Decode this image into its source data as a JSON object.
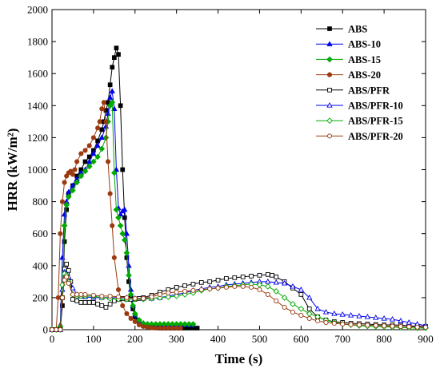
{
  "chart_data": {
    "type": "line",
    "xlabel": "Time (s)",
    "ylabel": "HRR (kW/m²)",
    "xlim": [
      0,
      900
    ],
    "ylim": [
      0,
      2000
    ],
    "x_ticks": [
      "0",
      "100",
      "200",
      "300",
      "400",
      "500",
      "600",
      "700",
      "800",
      "900"
    ],
    "y_ticks": [
      "0",
      "200",
      "400",
      "600",
      "800",
      "1000",
      "1200",
      "1400",
      "1600",
      "1800",
      "2000"
    ],
    "grid": false,
    "legend_position": "top-right",
    "series": [
      {
        "name": "ABS",
        "color": "#000000",
        "marker": "square",
        "filled": true,
        "x": [
          0,
          10,
          20,
          25,
          30,
          35,
          40,
          50,
          60,
          70,
          80,
          90,
          100,
          110,
          120,
          125,
          130,
          135,
          140,
          145,
          150,
          155,
          160,
          165,
          170,
          175,
          180,
          185,
          190,
          195,
          200,
          210,
          220,
          230,
          240,
          250,
          260,
          270,
          280,
          290,
          300,
          310,
          320,
          330,
          340,
          350
        ],
        "y": [
          0,
          0,
          0,
          150,
          550,
          750,
          850,
          900,
          960,
          1000,
          1050,
          1080,
          1120,
          1180,
          1250,
          1300,
          1370,
          1420,
          1530,
          1640,
          1700,
          1760,
          1720,
          1400,
          1000,
          700,
          450,
          300,
          200,
          130,
          80,
          40,
          25,
          20,
          15,
          12,
          10,
          10,
          10,
          10,
          10,
          10,
          10,
          10,
          10,
          10
        ]
      },
      {
        "name": "ABS-10",
        "color": "#0000ee",
        "marker": "triangle",
        "filled": true,
        "x": [
          0,
          10,
          20,
          25,
          30,
          35,
          40,
          50,
          60,
          70,
          80,
          90,
          100,
          110,
          120,
          130,
          135,
          140,
          145,
          150,
          155,
          160,
          165,
          170,
          175,
          180,
          185,
          190,
          195,
          200,
          210,
          220,
          230,
          240,
          250,
          260,
          270,
          280,
          290,
          300,
          310,
          320,
          330,
          340
        ],
        "y": [
          0,
          0,
          30,
          450,
          720,
          800,
          860,
          900,
          940,
          980,
          1000,
          1050,
          1100,
          1150,
          1200,
          1270,
          1350,
          1450,
          1490,
          1380,
          1000,
          760,
          720,
          740,
          750,
          600,
          400,
          250,
          150,
          90,
          55,
          40,
          35,
          30,
          30,
          30,
          30,
          30,
          30,
          30,
          30,
          30,
          30,
          30
        ]
      },
      {
        "name": "ABS-15",
        "color": "#00aa00",
        "marker": "diamond",
        "filled": true,
        "x": [
          0,
          10,
          20,
          25,
          30,
          35,
          40,
          50,
          60,
          70,
          80,
          90,
          100,
          110,
          120,
          130,
          135,
          140,
          145,
          150,
          155,
          160,
          165,
          170,
          175,
          180,
          185,
          190,
          195,
          200,
          210,
          220,
          230,
          240,
          250,
          260,
          270,
          280,
          290,
          300,
          310,
          320,
          330,
          340
        ],
        "y": [
          0,
          0,
          20,
          200,
          650,
          780,
          830,
          870,
          920,
          960,
          990,
          1020,
          1050,
          1080,
          1130,
          1200,
          1300,
          1400,
          1420,
          980,
          750,
          700,
          650,
          600,
          560,
          480,
          340,
          220,
          150,
          100,
          60,
          40,
          35,
          35,
          35,
          35,
          35,
          35,
          35,
          35,
          35,
          35,
          35,
          35
        ]
      },
      {
        "name": "ABS-20",
        "color": "#9b3a10",
        "marker": "circle",
        "filled": true,
        "x": [
          0,
          10,
          15,
          20,
          25,
          30,
          35,
          40,
          45,
          50,
          55,
          60,
          70,
          80,
          90,
          100,
          110,
          115,
          120,
          125,
          130,
          135,
          140,
          145,
          150,
          160,
          170,
          180,
          190,
          200,
          210,
          220,
          230,
          240,
          250,
          260,
          270,
          280,
          290,
          300,
          310
        ],
        "y": [
          0,
          0,
          200,
          600,
          800,
          920,
          960,
          980,
          990,
          970,
          1000,
          1050,
          1100,
          1120,
          1150,
          1200,
          1260,
          1300,
          1380,
          1420,
          1300,
          1050,
          850,
          650,
          450,
          250,
          150,
          100,
          70,
          50,
          30,
          20,
          15,
          12,
          10,
          10,
          10,
          10,
          10,
          10,
          10
        ]
      },
      {
        "name": "ABS/PFR",
        "color": "#000000",
        "marker": "square",
        "filled": false,
        "x": [
          0,
          10,
          20,
          25,
          30,
          35,
          40,
          45,
          50,
          60,
          70,
          80,
          90,
          100,
          110,
          120,
          130,
          140,
          150,
          160,
          170,
          180,
          190,
          200,
          210,
          220,
          240,
          260,
          280,
          300,
          320,
          340,
          360,
          380,
          400,
          420,
          440,
          460,
          480,
          500,
          520,
          530,
          540,
          560,
          580,
          600,
          620,
          640,
          660,
          680,
          700,
          720,
          740,
          760,
          780,
          800,
          820,
          840,
          860,
          880,
          900
        ],
        "y": [
          0,
          0,
          0,
          200,
          380,
          410,
          370,
          300,
          190,
          180,
          170,
          170,
          170,
          170,
          160,
          150,
          140,
          160,
          180,
          190,
          195,
          190,
          190,
          190,
          195,
          200,
          215,
          235,
          250,
          265,
          275,
          285,
          295,
          300,
          310,
          320,
          325,
          330,
          335,
          340,
          345,
          340,
          330,
          300,
          260,
          220,
          130,
          80,
          60,
          50,
          45,
          40,
          38,
          35,
          32,
          30,
          30,
          28,
          25,
          22,
          20
        ]
      },
      {
        "name": "ABS/PFR-10",
        "color": "#0000ee",
        "marker": "triangle",
        "filled": false,
        "x": [
          0,
          10,
          20,
          25,
          30,
          35,
          40,
          50,
          60,
          70,
          80,
          100,
          120,
          140,
          160,
          180,
          200,
          220,
          240,
          260,
          280,
          300,
          320,
          340,
          360,
          380,
          400,
          420,
          440,
          460,
          480,
          500,
          520,
          540,
          560,
          580,
          600,
          620,
          640,
          660,
          680,
          700,
          720,
          740,
          760,
          780,
          800,
          820,
          840,
          860,
          880,
          900
        ],
        "y": [
          0,
          0,
          0,
          250,
          360,
          350,
          330,
          260,
          220,
          210,
          205,
          200,
          200,
          200,
          200,
          200,
          195,
          195,
          195,
          200,
          210,
          220,
          230,
          245,
          255,
          265,
          270,
          280,
          285,
          290,
          295,
          300,
          300,
          295,
          290,
          270,
          250,
          200,
          130,
          110,
          100,
          95,
          90,
          85,
          80,
          75,
          70,
          65,
          55,
          45,
          35,
          25
        ]
      },
      {
        "name": "ABS/PFR-15",
        "color": "#00aa00",
        "marker": "diamond",
        "filled": false,
        "x": [
          0,
          10,
          20,
          25,
          30,
          35,
          40,
          50,
          60,
          70,
          80,
          100,
          120,
          140,
          160,
          180,
          200,
          220,
          240,
          260,
          280,
          300,
          320,
          340,
          360,
          380,
          400,
          420,
          440,
          460,
          480,
          500,
          520,
          540,
          560,
          580,
          600,
          620,
          640,
          660,
          680,
          700,
          720,
          740,
          760,
          780,
          800,
          820,
          840,
          860,
          880,
          900
        ],
        "y": [
          0,
          0,
          0,
          280,
          350,
          340,
          300,
          220,
          210,
          210,
          210,
          210,
          200,
          195,
          190,
          190,
          190,
          190,
          195,
          200,
          205,
          210,
          220,
          230,
          245,
          255,
          260,
          270,
          275,
          280,
          285,
          280,
          270,
          240,
          200,
          160,
          130,
          100,
          80,
          60,
          45,
          35,
          30,
          25,
          22,
          20,
          18,
          16,
          14,
          12,
          10,
          10
        ]
      },
      {
        "name": "ABS/PFR-20",
        "color": "#9b3a10",
        "marker": "circle",
        "filled": false,
        "x": [
          0,
          10,
          20,
          25,
          30,
          35,
          40,
          50,
          60,
          70,
          80,
          100,
          120,
          140,
          160,
          180,
          200,
          220,
          240,
          260,
          280,
          300,
          320,
          340,
          360,
          380,
          400,
          420,
          440,
          460,
          480,
          500,
          520,
          540,
          560,
          580,
          600,
          620,
          640,
          660,
          680,
          700,
          720,
          740,
          760,
          780,
          800,
          820,
          840,
          860,
          880,
          900
        ],
        "y": [
          0,
          0,
          0,
          200,
          310,
          330,
          290,
          220,
          220,
          220,
          220,
          215,
          210,
          210,
          205,
          200,
          195,
          195,
          205,
          220,
          230,
          235,
          240,
          245,
          250,
          255,
          260,
          265,
          270,
          270,
          265,
          250,
          220,
          180,
          140,
          110,
          90,
          70,
          55,
          45,
          40,
          35,
          32,
          30,
          28,
          26,
          24,
          22,
          20,
          18,
          16,
          15
        ]
      }
    ]
  }
}
